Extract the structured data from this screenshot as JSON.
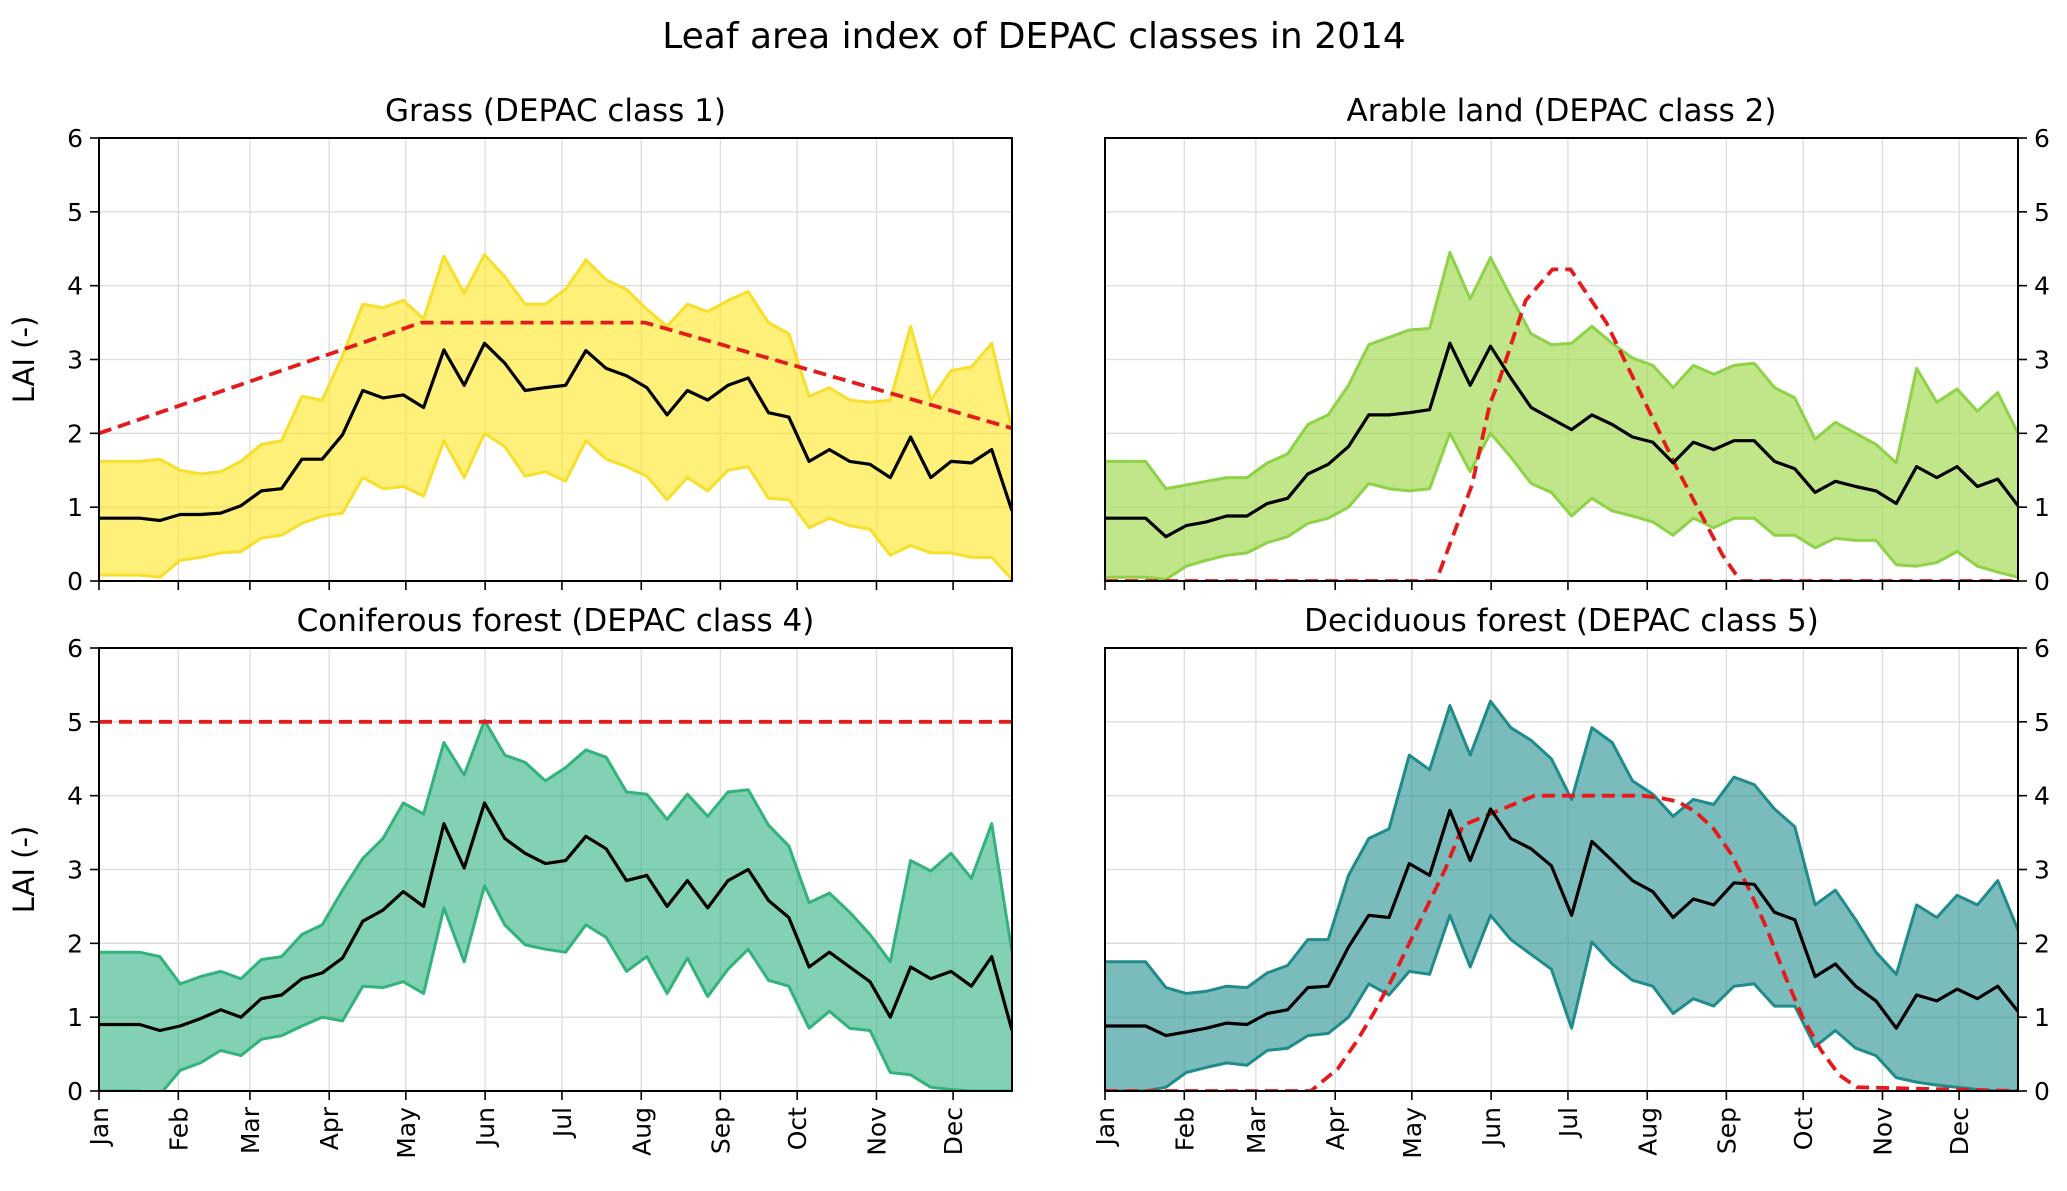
{
  "chart_data": {
    "type": "area",
    "title": "Leaf area index of DEPAC classes in 2014",
    "x_tick_labels": [
      "Jan",
      "Feb",
      "Mar",
      "Apr",
      "May",
      "Jun",
      "Jul",
      "Aug",
      "Sep",
      "Oct",
      "Nov",
      "Dec"
    ],
    "x_tick_weeks": [
      0,
      4.43,
      8.43,
      12.86,
      17.14,
      21.57,
      25.86,
      30.29,
      34.71,
      39,
      43.43,
      47.71
    ],
    "xlim": [
      0,
      51
    ],
    "ylim": [
      0,
      6
    ],
    "y_ticks": [
      "0",
      "1",
      "2",
      "3",
      "4",
      "5",
      "6"
    ],
    "ylabel": "LAI (-)",
    "grid": true,
    "panels": [
      {
        "name": "grass",
        "title": "Grass (DEPAC class 1)",
        "fill": "#fde725",
        "edge": "#f7df2b",
        "fill_opacity": 0.62,
        "mean": [
          0.85,
          0.85,
          0.85,
          0.82,
          0.9,
          0.9,
          0.92,
          1.02,
          1.22,
          1.25,
          1.65,
          1.65,
          1.98,
          2.58,
          2.48,
          2.52,
          2.35,
          3.13,
          2.65,
          3.22,
          2.95,
          2.58,
          2.62,
          2.65,
          3.12,
          2.88,
          2.78,
          2.62,
          2.25,
          2.58,
          2.45,
          2.65,
          2.75,
          2.28,
          2.22,
          1.62,
          1.78,
          1.62,
          1.58,
          1.4,
          1.95,
          1.4,
          1.62,
          1.6,
          1.78,
          0.95
        ],
        "upper": [
          1.62,
          1.62,
          1.62,
          1.65,
          1.5,
          1.45,
          1.48,
          1.62,
          1.85,
          1.9,
          2.5,
          2.45,
          3.05,
          3.75,
          3.7,
          3.8,
          3.55,
          4.4,
          3.9,
          4.42,
          4.12,
          3.75,
          3.75,
          3.95,
          4.35,
          4.08,
          3.95,
          3.68,
          3.45,
          3.75,
          3.65,
          3.8,
          3.92,
          3.5,
          3.35,
          2.5,
          2.62,
          2.45,
          2.42,
          2.45,
          3.45,
          2.45,
          2.85,
          2.9,
          3.22,
          2.05
        ],
        "lower": [
          0.08,
          0.08,
          0.08,
          0.05,
          0.28,
          0.32,
          0.38,
          0.4,
          0.58,
          0.62,
          0.78,
          0.88,
          0.92,
          1.4,
          1.25,
          1.28,
          1.15,
          1.9,
          1.4,
          2.0,
          1.82,
          1.42,
          1.48,
          1.35,
          1.9,
          1.65,
          1.55,
          1.42,
          1.1,
          1.4,
          1.22,
          1.5,
          1.55,
          1.12,
          1.1,
          0.72,
          0.85,
          0.75,
          0.7,
          0.35,
          0.48,
          0.38,
          0.38,
          0.32,
          0.32,
          0.02
        ],
        "reference_x": [
          0,
          18,
          30.5,
          51
        ],
        "reference_y": [
          2,
          3.5,
          3.5,
          2.07
        ]
      },
      {
        "name": "arable",
        "title": "Arable land (DEPAC class 2)",
        "fill": "#a8dd5b",
        "edge": "#8ed247",
        "fill_opacity": 0.72,
        "mean": [
          0.85,
          0.85,
          0.85,
          0.6,
          0.75,
          0.8,
          0.88,
          0.88,
          1.05,
          1.12,
          1.45,
          1.58,
          1.82,
          2.25,
          2.25,
          2.28,
          2.32,
          3.22,
          2.65,
          3.18,
          2.75,
          2.35,
          2.2,
          2.05,
          2.25,
          2.12,
          1.95,
          1.88,
          1.6,
          1.88,
          1.78,
          1.9,
          1.9,
          1.62,
          1.52,
          1.2,
          1.35,
          1.28,
          1.22,
          1.05,
          1.55,
          1.4,
          1.55,
          1.28,
          1.38,
          1.02
        ],
        "upper": [
          1.62,
          1.62,
          1.62,
          1.25,
          1.3,
          1.35,
          1.4,
          1.4,
          1.6,
          1.72,
          2.12,
          2.25,
          2.65,
          3.2,
          3.3,
          3.4,
          3.42,
          4.45,
          3.82,
          4.38,
          3.85,
          3.35,
          3.2,
          3.22,
          3.45,
          3.22,
          3.02,
          2.92,
          2.62,
          2.92,
          2.8,
          2.92,
          2.95,
          2.62,
          2.48,
          1.92,
          2.15,
          2.0,
          1.85,
          1.6,
          2.88,
          2.42,
          2.6,
          2.3,
          2.55,
          2.0
        ],
        "lower": [
          0.05,
          0.05,
          0.05,
          0.02,
          0.2,
          0.28,
          0.35,
          0.38,
          0.52,
          0.6,
          0.78,
          0.85,
          1.0,
          1.32,
          1.25,
          1.22,
          1.25,
          2.0,
          1.48,
          2.0,
          1.68,
          1.32,
          1.2,
          0.88,
          1.12,
          0.95,
          0.88,
          0.8,
          0.62,
          0.85,
          0.72,
          0.85,
          0.85,
          0.62,
          0.62,
          0.45,
          0.58,
          0.55,
          0.55,
          0.22,
          0.2,
          0.25,
          0.4,
          0.2,
          0.12,
          0.05
        ],
        "reference_x": [
          0,
          18.5,
          20.5,
          21.5,
          22,
          23.5,
          25,
          26,
          28,
          30,
          32,
          34.5,
          35.5,
          51
        ],
        "reference_y": [
          0,
          0,
          1.3,
          2.4,
          2.7,
          3.8,
          4.22,
          4.22,
          3.5,
          2.5,
          1.5,
          0.35,
          0,
          0
        ]
      },
      {
        "name": "coniferous",
        "title": "Coniferous forest (DEPAC class 4)",
        "fill": "#2ab07f",
        "edge": "#31b37b",
        "fill_opacity": 0.58,
        "mean": [
          0.9,
          0.9,
          0.9,
          0.82,
          0.88,
          0.98,
          1.1,
          1.0,
          1.25,
          1.3,
          1.52,
          1.6,
          1.8,
          2.3,
          2.45,
          2.7,
          2.5,
          3.62,
          3.02,
          3.9,
          3.42,
          3.22,
          3.08,
          3.12,
          3.45,
          3.28,
          2.85,
          2.92,
          2.5,
          2.85,
          2.48,
          2.85,
          3.0,
          2.58,
          2.35,
          1.68,
          1.88,
          1.68,
          1.48,
          1.0,
          1.68,
          1.52,
          1.62,
          1.42,
          1.82,
          0.82
        ],
        "upper": [
          1.88,
          1.88,
          1.88,
          1.82,
          1.45,
          1.55,
          1.62,
          1.52,
          1.78,
          1.82,
          2.12,
          2.25,
          2.72,
          3.15,
          3.42,
          3.9,
          3.75,
          4.72,
          4.28,
          5.02,
          4.55,
          4.45,
          4.2,
          4.38,
          4.62,
          4.52,
          4.05,
          4.02,
          3.68,
          4.02,
          3.72,
          4.05,
          4.08,
          3.6,
          3.32,
          2.55,
          2.68,
          2.42,
          2.12,
          1.75,
          3.12,
          2.98,
          3.22,
          2.88,
          3.62,
          1.88
        ],
        "lower": [
          0,
          0,
          0,
          -0.05,
          0.28,
          0.38,
          0.55,
          0.48,
          0.7,
          0.75,
          0.88,
          1.0,
          0.95,
          1.42,
          1.4,
          1.48,
          1.32,
          2.48,
          1.75,
          2.78,
          2.25,
          1.98,
          1.92,
          1.88,
          2.25,
          2.08,
          1.62,
          1.82,
          1.32,
          1.8,
          1.28,
          1.65,
          1.92,
          1.5,
          1.42,
          0.85,
          1.08,
          0.85,
          0.82,
          0.25,
          0.22,
          0.05,
          0.02,
          0,
          0,
          0
        ],
        "reference_x": [
          0,
          51
        ],
        "reference_y": [
          5,
          5
        ]
      },
      {
        "name": "deciduous",
        "title": "Deciduous forest (DEPAC class 5)",
        "fill": "#21908d",
        "edge": "#1f8b8a",
        "fill_opacity": 0.6,
        "mean": [
          0.88,
          0.88,
          0.88,
          0.75,
          0.8,
          0.85,
          0.92,
          0.9,
          1.05,
          1.1,
          1.4,
          1.42,
          1.95,
          2.38,
          2.35,
          3.08,
          2.92,
          3.8,
          3.12,
          3.82,
          3.42,
          3.28,
          3.05,
          2.38,
          3.38,
          3.12,
          2.85,
          2.7,
          2.35,
          2.6,
          2.52,
          2.82,
          2.8,
          2.42,
          2.32,
          1.55,
          1.72,
          1.42,
          1.22,
          0.85,
          1.3,
          1.22,
          1.38,
          1.25,
          1.42,
          1.08
        ],
        "upper": [
          1.75,
          1.75,
          1.75,
          1.4,
          1.32,
          1.35,
          1.42,
          1.4,
          1.6,
          1.7,
          2.05,
          2.05,
          2.92,
          3.42,
          3.55,
          4.55,
          4.35,
          5.22,
          4.55,
          5.28,
          4.92,
          4.75,
          4.5,
          3.95,
          4.92,
          4.72,
          4.2,
          4.02,
          3.72,
          3.95,
          3.88,
          4.25,
          4.15,
          3.82,
          3.58,
          2.52,
          2.72,
          2.32,
          1.88,
          1.58,
          2.52,
          2.35,
          2.65,
          2.52,
          2.85,
          2.18
        ],
        "lower": [
          0,
          0,
          0,
          0.05,
          0.25,
          0.32,
          0.38,
          0.35,
          0.55,
          0.58,
          0.75,
          0.78,
          1.0,
          1.45,
          1.3,
          1.62,
          1.58,
          2.38,
          1.68,
          2.38,
          2.05,
          1.85,
          1.65,
          0.85,
          2.02,
          1.72,
          1.5,
          1.42,
          1.05,
          1.25,
          1.15,
          1.42,
          1.45,
          1.15,
          1.15,
          0.6,
          0.82,
          0.58,
          0.48,
          0.18,
          0.12,
          0.08,
          0.05,
          0.02,
          0,
          0
        ],
        "reference_x": [
          0,
          11.5,
          12,
          13,
          14,
          15,
          16,
          17,
          18,
          19,
          20,
          24,
          30,
          31,
          32,
          33,
          34,
          35,
          36,
          37,
          38,
          39,
          40,
          41,
          42,
          51
        ],
        "reference_y": [
          0,
          0,
          0.1,
          0.3,
          0.65,
          1.05,
          1.5,
          2.0,
          2.5,
          3.0,
          3.6,
          4.0,
          4.0,
          3.97,
          3.92,
          3.78,
          3.55,
          3.2,
          2.72,
          2.18,
          1.55,
          0.98,
          0.55,
          0.22,
          0.05,
          0
        ]
      }
    ]
  }
}
